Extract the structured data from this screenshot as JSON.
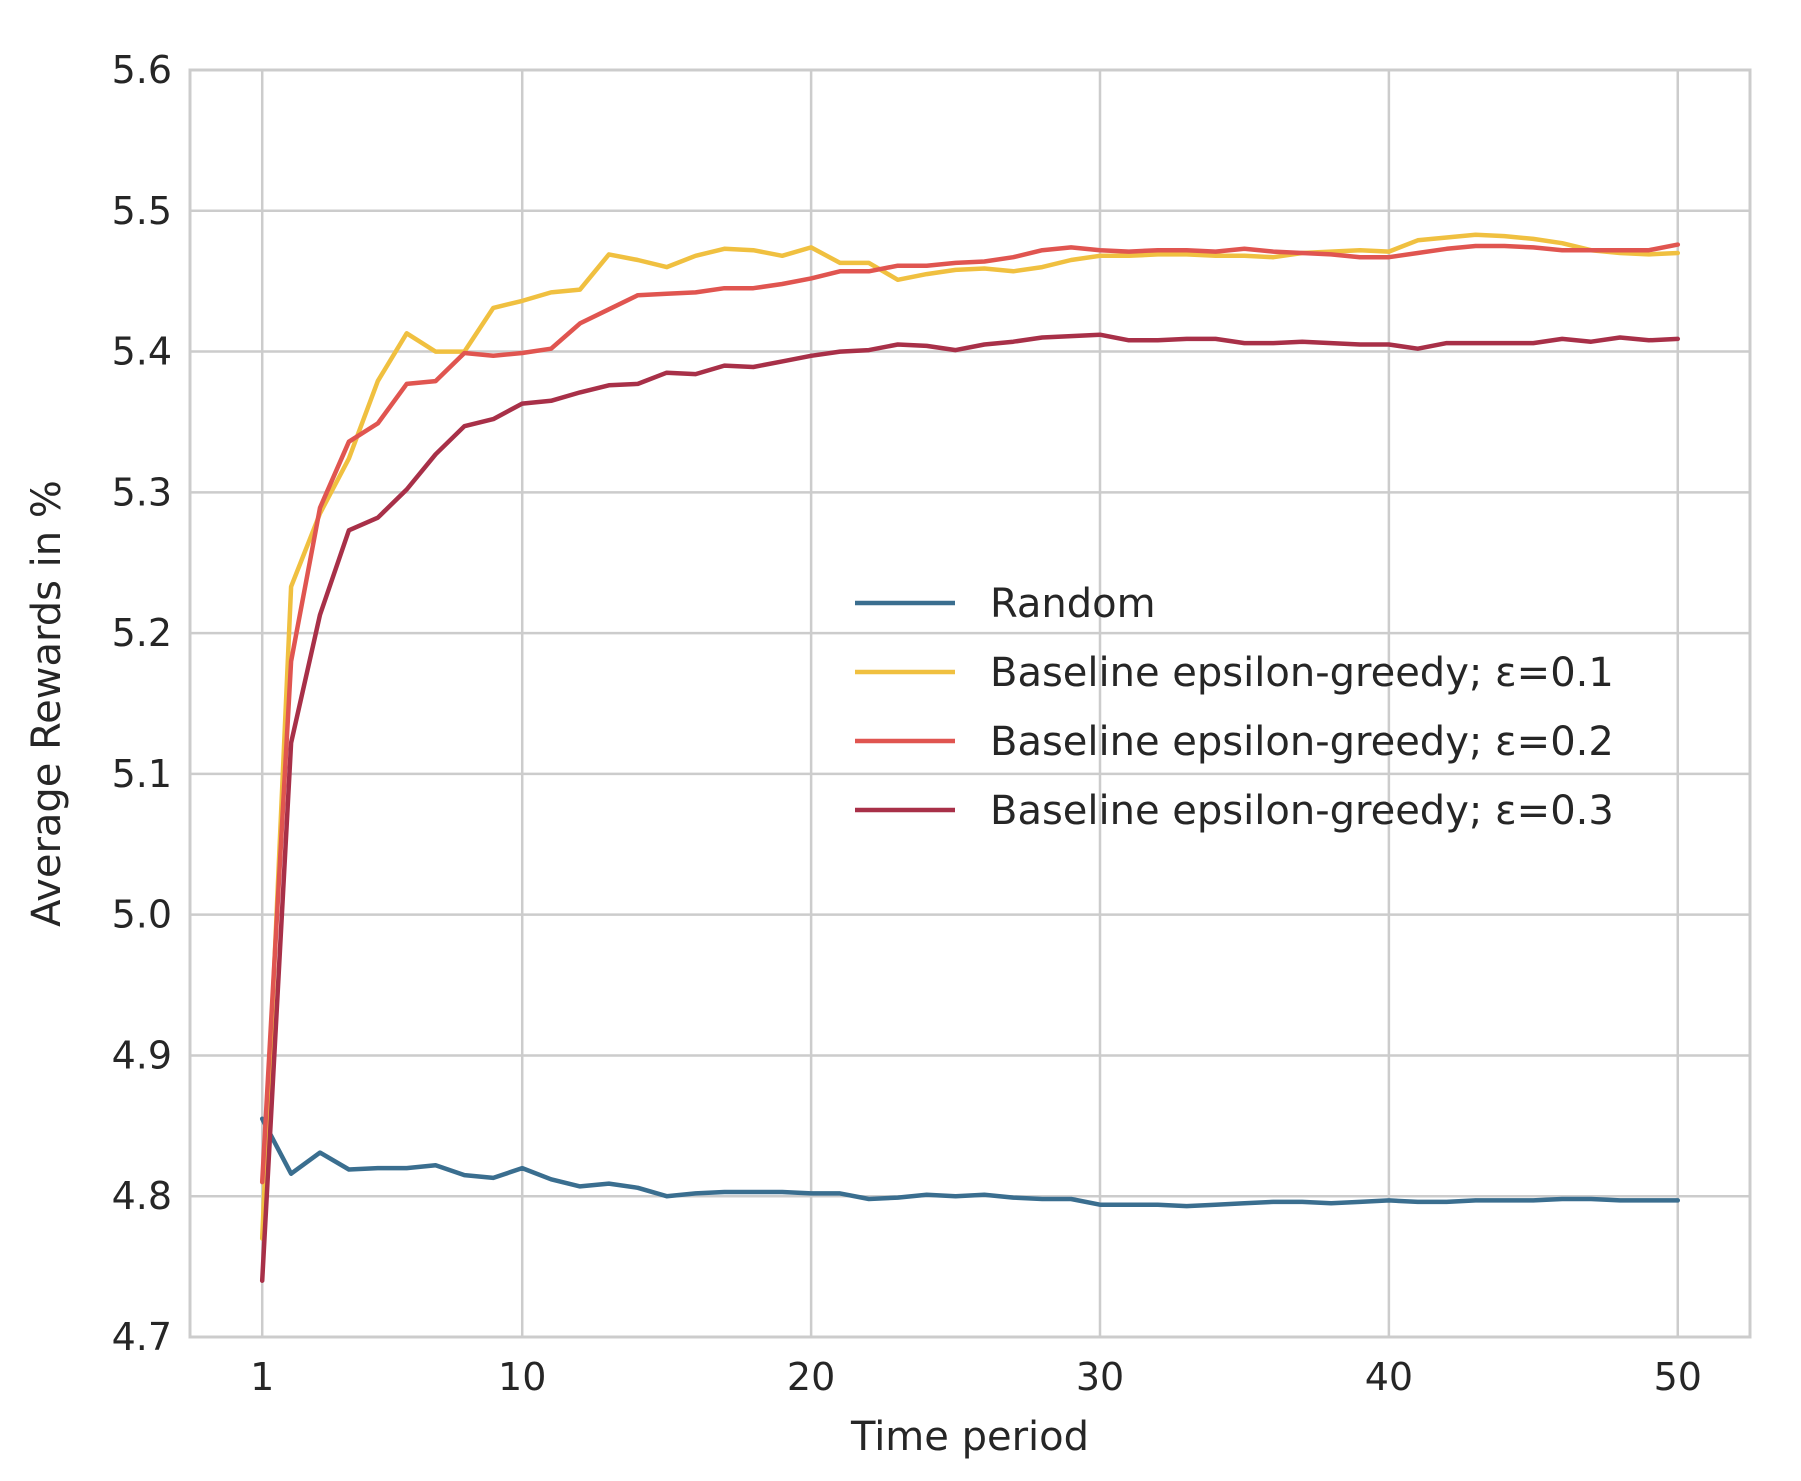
{
  "chart_data": {
    "type": "line",
    "title": "",
    "xlabel": "Time period",
    "ylabel": "Average Rewards in %",
    "xlim": [
      -1.5,
      52.5
    ],
    "ylim": [
      4.7,
      5.6
    ],
    "xticks": [
      1,
      10,
      20,
      30,
      40,
      50
    ],
    "yticks": [
      4.7,
      4.8,
      4.9,
      5.0,
      5.1,
      5.2,
      5.3,
      5.4,
      5.5,
      5.6
    ],
    "xtick_labels": [
      "1",
      "10",
      "20",
      "30",
      "40",
      "50"
    ],
    "ytick_labels": [
      "4.7",
      "4.8",
      "4.9",
      "5.0",
      "5.1",
      "5.2",
      "5.3",
      "5.4",
      "5.5",
      "5.6"
    ],
    "grid": true,
    "legend_position": "center-right",
    "x": [
      1,
      2,
      3,
      4,
      5,
      6,
      7,
      8,
      9,
      10,
      11,
      12,
      13,
      14,
      15,
      16,
      17,
      18,
      19,
      20,
      21,
      22,
      23,
      24,
      25,
      26,
      27,
      28,
      29,
      30,
      31,
      32,
      33,
      34,
      35,
      36,
      37,
      38,
      39,
      40,
      41,
      42,
      43,
      44,
      45,
      46,
      47,
      48,
      49,
      50
    ],
    "series": [
      {
        "name": "Random",
        "color": "#3a6e8f",
        "values": [
          4.855,
          4.816,
          4.831,
          4.819,
          4.82,
          4.82,
          4.822,
          4.815,
          4.813,
          4.82,
          4.812,
          4.807,
          4.809,
          4.806,
          4.8,
          4.802,
          4.803,
          4.803,
          4.803,
          4.802,
          4.802,
          4.798,
          4.799,
          4.801,
          4.8,
          4.801,
          4.799,
          4.798,
          4.798,
          4.794,
          4.794,
          4.794,
          4.793,
          4.794,
          4.795,
          4.796,
          4.796,
          4.795,
          4.796,
          4.797,
          4.796,
          4.796,
          4.797,
          4.797,
          4.797,
          4.798,
          4.798,
          4.797,
          4.797,
          4.797
        ]
      },
      {
        "name": "Baseline epsilon-greedy; ε=0.1",
        "color": "#f0c040",
        "values": [
          4.77,
          5.233,
          5.285,
          5.324,
          5.379,
          5.413,
          5.4,
          5.4,
          5.431,
          5.436,
          5.442,
          5.444,
          5.469,
          5.465,
          5.46,
          5.468,
          5.473,
          5.472,
          5.468,
          5.474,
          5.463,
          5.463,
          5.451,
          5.455,
          5.458,
          5.459,
          5.457,
          5.46,
          5.465,
          5.468,
          5.468,
          5.469,
          5.469,
          5.468,
          5.468,
          5.467,
          5.47,
          5.471,
          5.472,
          5.471,
          5.479,
          5.481,
          5.483,
          5.482,
          5.48,
          5.477,
          5.472,
          5.47,
          5.469,
          5.47
        ]
      },
      {
        "name": "Baseline epsilon-greedy; ε=0.2",
        "color": "#e05550",
        "values": [
          4.81,
          5.18,
          5.289,
          5.336,
          5.349,
          5.377,
          5.379,
          5.399,
          5.397,
          5.399,
          5.402,
          5.42,
          5.43,
          5.44,
          5.441,
          5.442,
          5.445,
          5.445,
          5.448,
          5.452,
          5.457,
          5.457,
          5.461,
          5.461,
          5.463,
          5.464,
          5.467,
          5.472,
          5.474,
          5.472,
          5.471,
          5.472,
          5.472,
          5.471,
          5.473,
          5.471,
          5.47,
          5.469,
          5.467,
          5.467,
          5.47,
          5.473,
          5.475,
          5.475,
          5.474,
          5.472,
          5.472,
          5.472,
          5.472,
          5.476
        ]
      },
      {
        "name": "Baseline epsilon-greedy; ε=0.3",
        "color": "#a83048",
        "values": [
          4.74,
          5.122,
          5.213,
          5.273,
          5.282,
          5.302,
          5.327,
          5.347,
          5.352,
          5.363,
          5.365,
          5.371,
          5.376,
          5.377,
          5.385,
          5.384,
          5.39,
          5.389,
          5.393,
          5.397,
          5.4,
          5.401,
          5.405,
          5.404,
          5.401,
          5.405,
          5.407,
          5.41,
          5.411,
          5.412,
          5.408,
          5.408,
          5.409,
          5.409,
          5.406,
          5.406,
          5.407,
          5.406,
          5.405,
          5.405,
          5.402,
          5.406,
          5.406,
          5.406,
          5.406,
          5.409,
          5.407,
          5.41,
          5.408,
          5.409
        ]
      }
    ]
  }
}
